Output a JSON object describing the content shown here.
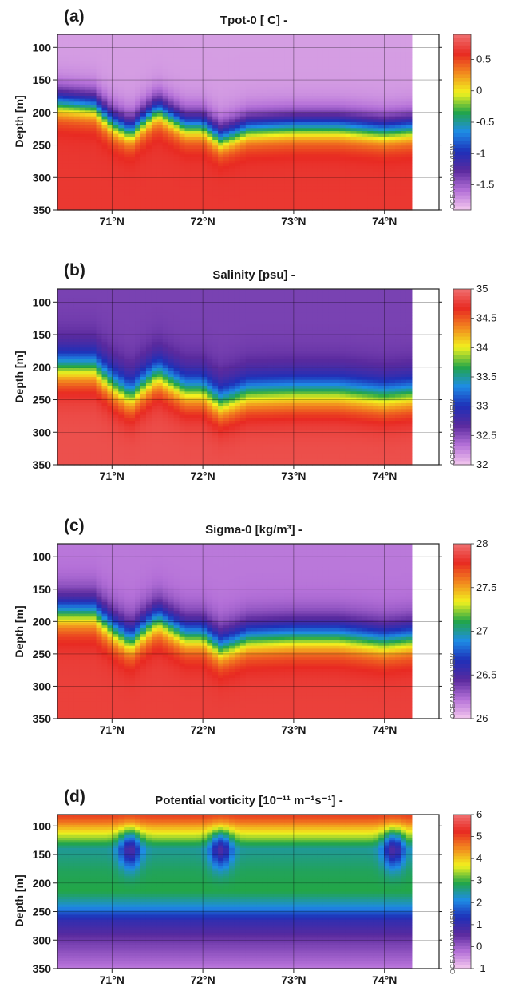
{
  "figure": {
    "watermark": "OCEAN DATA VIEW",
    "y_axis_label": "Depth [m]",
    "depth_ticks": [
      "100",
      "150",
      "200",
      "250",
      "300",
      "350"
    ],
    "lat_ticks": [
      "71°N",
      "72°N",
      "73°N",
      "74°N"
    ]
  },
  "colors": {
    "scale": [
      "#f4c8ee",
      "#b470d8",
      "#5a2a9e",
      "#1e30b8",
      "#1e8ce6",
      "#22a648",
      "#f2f21e",
      "#f28a1e",
      "#e82a22",
      "#f07070"
    ]
  },
  "chart_data": [
    {
      "type": "heatmap",
      "panel": "(a)",
      "title": "Tpot-0 [ C] -",
      "ylabel": "Depth [m]",
      "ylim": [
        350,
        80
      ],
      "xlim": [
        70.4,
        74.6
      ],
      "x_ticks": [
        71,
        72,
        73,
        74
      ],
      "colorbar": {
        "min": -1.9,
        "max": 0.9,
        "ticks": [
          "0.5",
          "0",
          "-0.5",
          "-1",
          "-1.5"
        ],
        "tick_values": [
          0.5,
          0,
          -0.5,
          -1,
          -1.5
        ]
      },
      "data_end_lat": 74.3,
      "profile": {
        "surface_value": -1.75,
        "deep_value": 0.65,
        "interface_depth": 200,
        "thickness": 65
      },
      "interface_depth_by_lat": {
        "lat": [
          70.4,
          70.8,
          71.0,
          71.2,
          71.5,
          71.8,
          72.0,
          72.2,
          72.5,
          73.0,
          73.5,
          74.0,
          74.5
        ],
        "depth": [
          185,
          190,
          215,
          230,
          195,
          220,
          220,
          240,
          225,
          222,
          222,
          228,
          222
        ]
      }
    },
    {
      "type": "heatmap",
      "panel": "(b)",
      "title": "Salinity [psu] -",
      "ylabel": "Depth [m]",
      "ylim": [
        350,
        80
      ],
      "xlim": [
        70.4,
        74.6
      ],
      "x_ticks": [
        71,
        72,
        73,
        74
      ],
      "colorbar": {
        "min": 32,
        "max": 35,
        "ticks": [
          "35",
          "34.5",
          "34",
          "33.5",
          "33",
          "32.5",
          "32"
        ],
        "tick_values": [
          35,
          34.5,
          34,
          33.5,
          33,
          32.5,
          32
        ]
      },
      "data_end_lat": 74.3,
      "profile": {
        "surface_value": 32.55,
        "deep_value": 34.85,
        "interface_depth": 215,
        "thickness": 85
      },
      "interface_depth_by_lat": {
        "lat": [
          70.4,
          70.8,
          71.0,
          71.2,
          71.5,
          71.8,
          72.0,
          72.2,
          72.5,
          73.0,
          73.5,
          74.0,
          74.5
        ],
        "depth": [
          200,
          200,
          225,
          245,
          210,
          235,
          235,
          255,
          240,
          238,
          238,
          245,
          238
        ]
      }
    },
    {
      "type": "heatmap",
      "panel": "(c)",
      "title": "Sigma-0 [kg/m³] -",
      "ylabel": "Depth [m]",
      "ylim": [
        350,
        80
      ],
      "xlim": [
        70.4,
        74.6
      ],
      "x_ticks": [
        71,
        72,
        73,
        74
      ],
      "colorbar": {
        "min": 26,
        "max": 28,
        "ticks": [
          "28",
          "27.5",
          "27",
          "26.5",
          "26"
        ],
        "tick_values": [
          28,
          27.5,
          27,
          26.5,
          26
        ]
      },
      "data_end_lat": 74.3,
      "profile": {
        "surface_value": 26.2,
        "deep_value": 27.85,
        "interface_depth": 200,
        "thickness": 80
      },
      "interface_depth_by_lat": {
        "lat": [
          70.4,
          70.8,
          71.0,
          71.2,
          71.5,
          71.8,
          72.0,
          72.2,
          72.5,
          73.0,
          73.5,
          74.0,
          74.5
        ],
        "depth": [
          185,
          185,
          210,
          230,
          195,
          220,
          220,
          240,
          225,
          222,
          222,
          230,
          222
        ]
      }
    },
    {
      "type": "heatmap",
      "panel": "(d)",
      "title": "Potential vorticity [10⁻¹¹ m⁻¹s⁻¹] -",
      "ylabel": "Depth [m]",
      "ylim": [
        350,
        80
      ],
      "xlim": [
        70.4,
        74.6
      ],
      "x_ticks": [
        71,
        72,
        73,
        74
      ],
      "colorbar": {
        "min": -1,
        "max": 6,
        "ticks": [
          "6",
          "5",
          "4",
          "3",
          "2",
          "1",
          "0",
          "-1"
        ],
        "tick_values": [
          6,
          5,
          4,
          3,
          2,
          1,
          0,
          -1
        ]
      },
      "data_end_lat": 74.3,
      "layers": {
        "depth": [
          85,
          110,
          140,
          180,
          215,
          240,
          265,
          300,
          350
        ],
        "value": [
          5.0,
          3.8,
          2.5,
          2.8,
          2.9,
          2.2,
          1.1,
          0.4,
          -0.3
        ]
      },
      "low_pv_cores_lat": [
        71.2,
        72.2,
        74.1
      ]
    }
  ]
}
